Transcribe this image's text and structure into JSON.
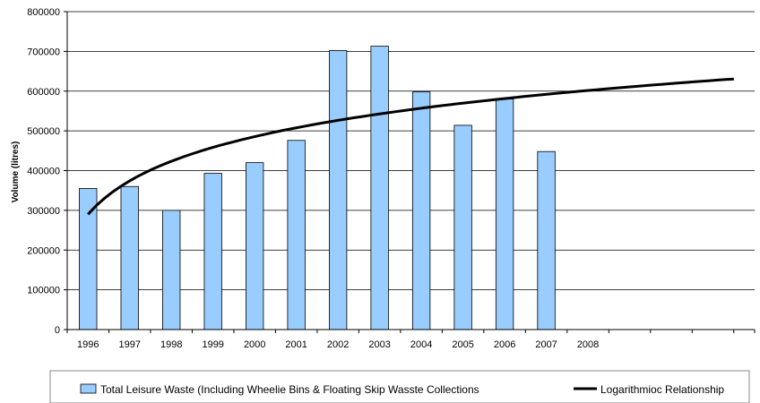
{
  "chart_data": {
    "type": "bar",
    "categories": [
      "1996",
      "1997",
      "1998",
      "1999",
      "2000",
      "2001",
      "2002",
      "2003",
      "2004",
      "2005",
      "2006",
      "2007",
      "2008"
    ],
    "series": [
      {
        "name": "Total Leisure Waste (Including Wheelie Bins & Floating Skip Wasste Collections",
        "type": "bar",
        "color": "#99ccff",
        "values": [
          355000,
          360000,
          300000,
          393000,
          420000,
          476000,
          702000,
          713000,
          598000,
          514000,
          580000,
          448000,
          null
        ]
      },
      {
        "name": "Logarithmioc Relationship",
        "type": "line",
        "color": "#000000",
        "x": [
          1,
          16.5
        ],
        "fit": {
          "kind": "logarithmic",
          "a": 290000,
          "b": 121500
        }
      }
    ],
    "ylabel": "Volume (litres)",
    "xlabel": "",
    "ylim": [
      0,
      800000
    ],
    "yticks": [
      0,
      100000,
      200000,
      300000,
      400000,
      500000,
      600000,
      700000,
      800000
    ],
    "grid": true,
    "legend_position": "bottom"
  }
}
